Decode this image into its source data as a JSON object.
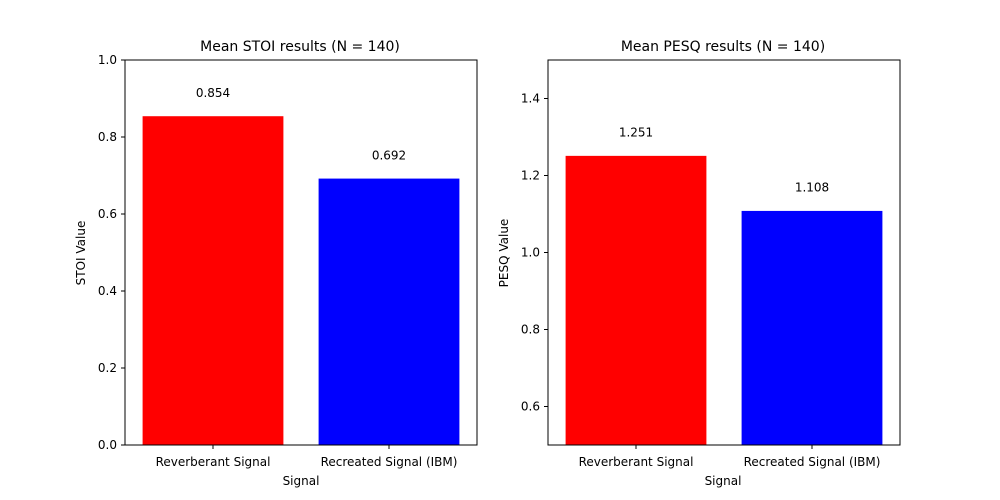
{
  "chart_data": [
    {
      "type": "bar",
      "title": "Mean STOI results (N = 140)",
      "xlabel": "Signal",
      "ylabel": "STOI Value",
      "categories": [
        "Reverberant Signal",
        "Recreated Signal (IBM)"
      ],
      "values": [
        0.854,
        0.692
      ],
      "value_labels": [
        "0.854",
        "0.692"
      ],
      "colors": [
        "#ff0000",
        "#0000ff"
      ],
      "ylim": [
        0.0,
        1.0
      ],
      "yticks": [
        0.0,
        0.2,
        0.4,
        0.6,
        0.8,
        1.0
      ],
      "ytick_labels": [
        "0.0",
        "0.2",
        "0.4",
        "0.6",
        "0.8",
        "1.0"
      ],
      "grid": false
    },
    {
      "type": "bar",
      "title": "Mean PESQ results (N = 140)",
      "xlabel": "Signal",
      "ylabel": "PESQ Value",
      "categories": [
        "Reverberant Signal",
        "Recreated Signal (IBM)"
      ],
      "values": [
        1.251,
        1.108
      ],
      "value_labels": [
        "1.251",
        "1.108"
      ],
      "colors": [
        "#ff0000",
        "#0000ff"
      ],
      "ylim": [
        0.5,
        1.5
      ],
      "yticks": [
        0.6,
        0.8,
        1.0,
        1.2,
        1.4
      ],
      "ytick_labels": [
        "0.6",
        "0.8",
        "1.0",
        "1.2",
        "1.4"
      ],
      "grid": false
    }
  ]
}
